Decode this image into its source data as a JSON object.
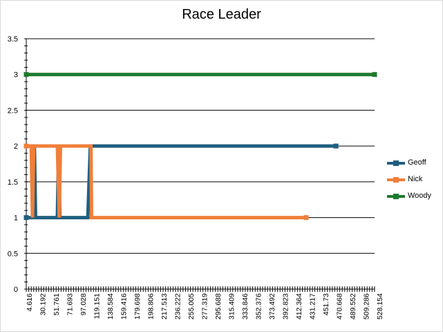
{
  "chart_data": {
    "type": "line",
    "title": "Race Leader",
    "xlabel": "",
    "ylabel": "",
    "ylim": [
      0,
      3.5
    ],
    "y_ticks": [
      0,
      0.5,
      1,
      1.5,
      2,
      2.5,
      3,
      3.5
    ],
    "y_tick_labels": [
      "0",
      "0.5",
      "1",
      "1.5",
      "2",
      "2.5",
      "3",
      "3.5"
    ],
    "x_tick_labels": [
      "4.616",
      "30.192",
      "51.761",
      "71.693",
      "97.028",
      "119.151",
      "138.584",
      "159.416",
      "179.698",
      "198.806",
      "217.513",
      "236.222",
      "255.005",
      "277.319",
      "295.688",
      "315.409",
      "333.846",
      "352.376",
      "373.492",
      "392.823",
      "412.364",
      "431.217",
      "451.73",
      "470.668",
      "489.552",
      "509.286",
      "528.154"
    ],
    "x_lim": [
      0,
      560
    ],
    "grid": true,
    "legend_position": "right",
    "series": [
      {
        "name": "Geoff",
        "color": "#1f5f7f",
        "x": [
          0,
          10,
          11,
          13,
          15,
          50,
          52,
          54,
          99,
          103,
          104,
          498
        ],
        "values": [
          1,
          1,
          2,
          2,
          1,
          1,
          2,
          1,
          1,
          2,
          2,
          2
        ]
      },
      {
        "name": "Nick",
        "color": "#f07f3a",
        "x": [
          0,
          8,
          10,
          12,
          14,
          50,
          53,
          55,
          104,
          105,
          450
        ],
        "values": [
          2,
          2,
          1,
          2,
          2,
          2,
          1,
          2,
          2,
          1,
          1
        ]
      },
      {
        "name": "Woody",
        "color": "#1e7a2e",
        "x": [
          0,
          560
        ],
        "values": [
          3,
          3
        ]
      }
    ]
  }
}
